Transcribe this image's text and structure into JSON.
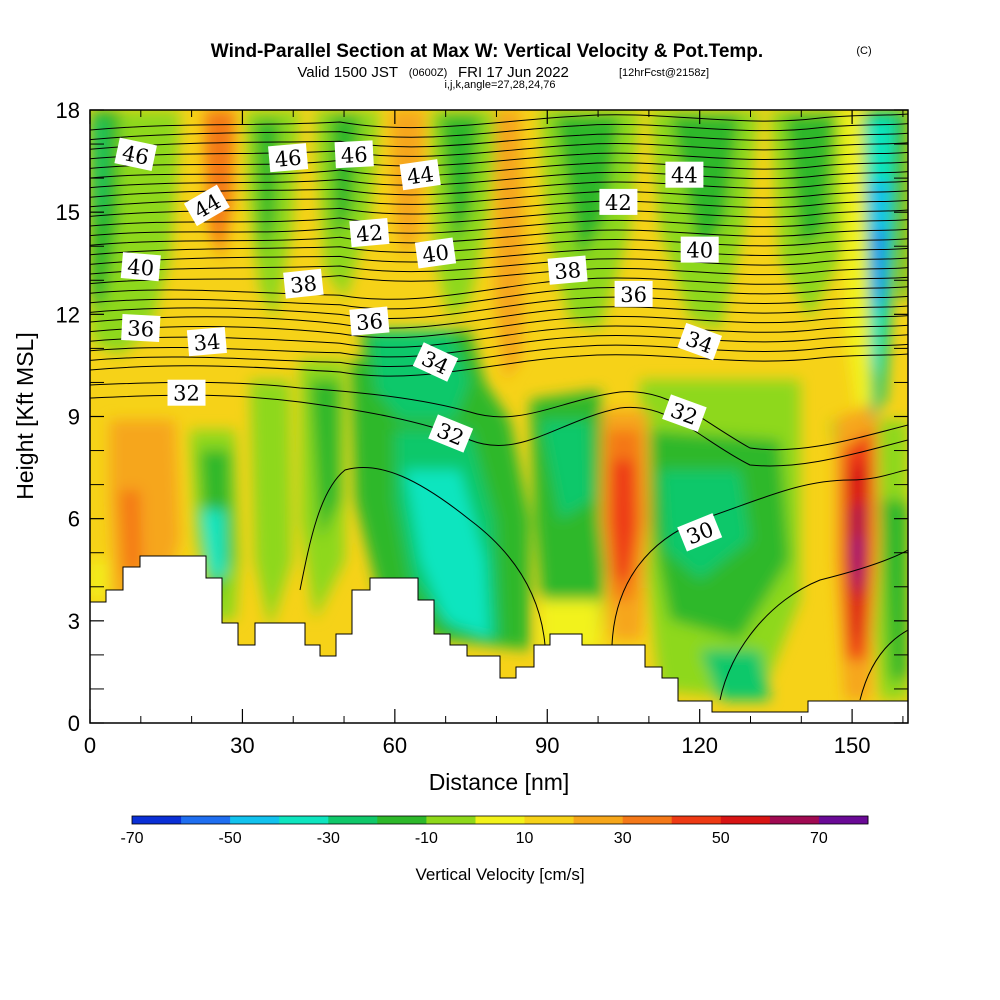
{
  "title": {
    "main": "Wind-Parallel Section at Max W: Vertical Velocity & Pot.Temp.",
    "copyright": "(C)",
    "valid_prefix": "Valid 1500 JST",
    "valid_utc": "(0600Z)",
    "valid_date": "FRI 17 Jun 2022",
    "forecast": "[12hrFcst@2158z]",
    "indices": "i,j,k,angle=27,28,24,76"
  },
  "chart_data": {
    "type": "heatmap",
    "title": "Wind-Parallel Section at Max W: Vertical Velocity & Pot.Temp.",
    "xlabel": "Distance [nm]",
    "ylabel": "Height [Kft MSL]",
    "xlim": [
      0,
      161
    ],
    "ylim": [
      0,
      18
    ],
    "x_ticks": [
      0,
      30,
      60,
      90,
      120,
      150
    ],
    "y_ticks": [
      0,
      3,
      6,
      9,
      12,
      15,
      18
    ],
    "colorbar": {
      "title": "Vertical Velocity [cm/s]",
      "levels": [
        -70,
        -60,
        -50,
        -40,
        -30,
        -20,
        -10,
        0,
        10,
        20,
        30,
        40,
        50,
        60,
        70,
        80
      ],
      "colors": [
        "#0a2fd6",
        "#1f6ef0",
        "#12c2ee",
        "#0ee5bf",
        "#10c86a",
        "#2db82a",
        "#8ed81a",
        "#f2f21a",
        "#f6d218",
        "#f6a61a",
        "#f47818",
        "#ee3a14",
        "#d81414",
        "#a00a52",
        "#6a0a96"
      ],
      "tick_labels": [
        "-70",
        "-50",
        "-30",
        "-10",
        "10",
        "30",
        "50",
        "70"
      ]
    },
    "theta_contour_labels": [
      {
        "value": "46",
        "x": 9,
        "y": 16.7,
        "angle": 12
      },
      {
        "value": "46",
        "x": 39,
        "y": 16.6,
        "angle": -5
      },
      {
        "value": "46",
        "x": 52,
        "y": 16.7,
        "angle": -3
      },
      {
        "value": "44",
        "x": 23,
        "y": 15.2,
        "angle": -30
      },
      {
        "value": "44",
        "x": 65,
        "y": 16.1,
        "angle": -8
      },
      {
        "value": "44",
        "x": 117,
        "y": 16.1,
        "angle": 0
      },
      {
        "value": "42",
        "x": 55,
        "y": 14.4,
        "angle": -5
      },
      {
        "value": "42",
        "x": 104,
        "y": 15.3,
        "angle": 0
      },
      {
        "value": "40",
        "x": 10,
        "y": 13.4,
        "angle": 5
      },
      {
        "value": "40",
        "x": 68,
        "y": 13.8,
        "angle": -8
      },
      {
        "value": "40",
        "x": 120,
        "y": 13.9,
        "angle": 0
      },
      {
        "value": "38",
        "x": 42,
        "y": 12.9,
        "angle": -6
      },
      {
        "value": "38",
        "x": 94,
        "y": 13.3,
        "angle": -5
      },
      {
        "value": "36",
        "x": 10,
        "y": 11.6,
        "angle": 3
      },
      {
        "value": "36",
        "x": 55,
        "y": 11.8,
        "angle": -5
      },
      {
        "value": "36",
        "x": 107,
        "y": 12.6,
        "angle": 0
      },
      {
        "value": "34",
        "x": 23,
        "y": 11.2,
        "angle": -5
      },
      {
        "value": "34",
        "x": 68,
        "y": 10.6,
        "angle": 25
      },
      {
        "value": "34",
        "x": 120,
        "y": 11.2,
        "angle": 20
      },
      {
        "value": "32",
        "x": 19,
        "y": 9.7,
        "angle": 0
      },
      {
        "value": "32",
        "x": 71,
        "y": 8.5,
        "angle": 22
      },
      {
        "value": "32",
        "x": 117,
        "y": 9.1,
        "angle": 20
      },
      {
        "value": "30",
        "x": 120,
        "y": 5.6,
        "angle": -22
      }
    ]
  }
}
